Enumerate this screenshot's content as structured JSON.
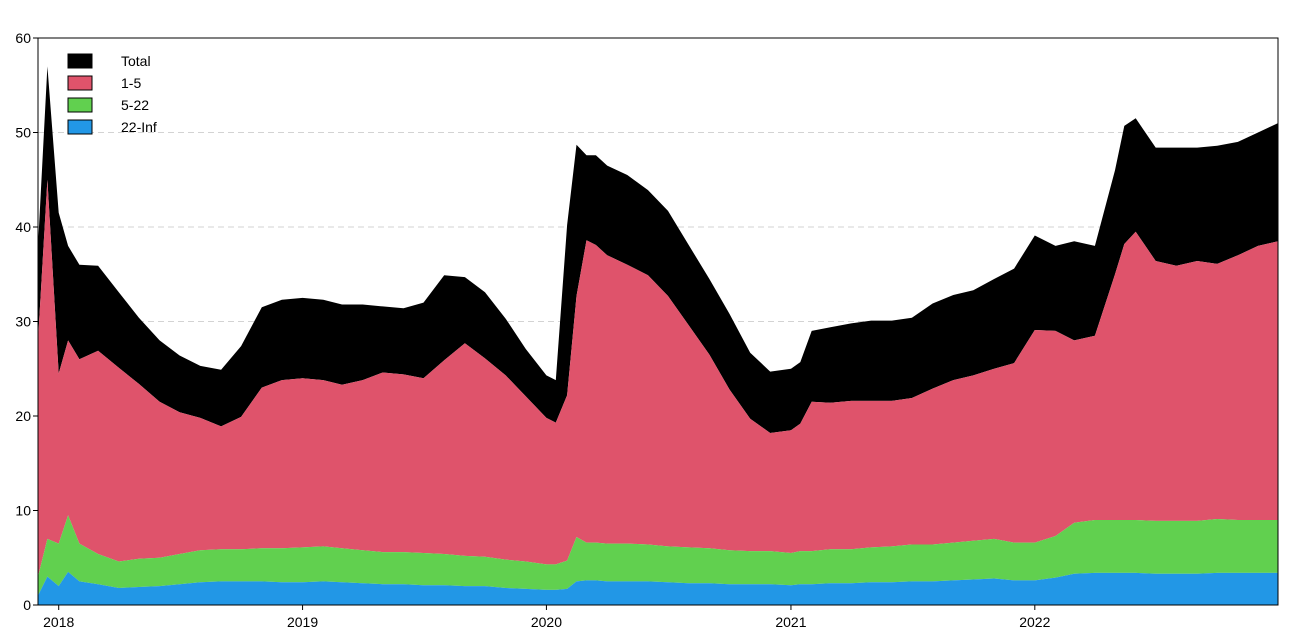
{
  "chart_data": {
    "type": "area",
    "stacked": true,
    "title": "",
    "xlabel": "",
    "ylabel": "",
    "xlim": [
      "2017-12-01",
      "2022-12-31"
    ],
    "ylim": [
      0,
      60
    ],
    "x_ticks": [
      "2018",
      "2019",
      "2020",
      "2021",
      "2022"
    ],
    "y_ticks": [
      0,
      10,
      20,
      30,
      40,
      50,
      60
    ],
    "grid": "dashed horizontal",
    "legend_position": "top-left",
    "x": [
      "2017-12-01",
      "2017-12-15",
      "2018-01-01",
      "2018-01-15",
      "2018-02-01",
      "2018-03-01",
      "2018-04-01",
      "2018-05-01",
      "2018-06-01",
      "2018-07-01",
      "2018-08-01",
      "2018-09-01",
      "2018-10-01",
      "2018-11-01",
      "2018-12-01",
      "2019-01-01",
      "2019-02-01",
      "2019-03-01",
      "2019-04-01",
      "2019-05-01",
      "2019-06-01",
      "2019-07-01",
      "2019-08-01",
      "2019-09-01",
      "2019-10-01",
      "2019-11-01",
      "2019-12-01",
      "2020-01-01",
      "2020-01-15",
      "2020-02-01",
      "2020-02-15",
      "2020-03-01",
      "2020-03-15",
      "2020-04-01",
      "2020-05-01",
      "2020-06-01",
      "2020-07-01",
      "2020-08-01",
      "2020-09-01",
      "2020-10-01",
      "2020-11-01",
      "2020-12-01",
      "2021-01-01",
      "2021-01-15",
      "2021-02-01",
      "2021-03-01",
      "2021-04-01",
      "2021-05-01",
      "2021-06-01",
      "2021-07-01",
      "2021-08-01",
      "2021-09-01",
      "2021-10-01",
      "2021-11-01",
      "2021-12-01",
      "2022-01-01",
      "2022-02-01",
      "2022-03-01",
      "2022-04-01",
      "2022-05-01",
      "2022-05-15",
      "2022-06-01",
      "2022-07-01",
      "2022-08-01",
      "2022-09-01",
      "2022-10-01",
      "2022-11-01",
      "2022-12-01",
      "2022-12-31"
    ],
    "series": [
      {
        "name": "22-Inf",
        "color": "#2297e6",
        "values": [
          1.0,
          3.0,
          2.0,
          3.5,
          2.5,
          2.2,
          1.8,
          1.9,
          2.0,
          2.2,
          2.4,
          2.5,
          2.5,
          2.5,
          2.4,
          2.4,
          2.5,
          2.4,
          2.3,
          2.2,
          2.2,
          2.1,
          2.1,
          2.0,
          2.0,
          1.8,
          1.7,
          1.6,
          1.6,
          1.7,
          2.5,
          2.6,
          2.6,
          2.5,
          2.5,
          2.5,
          2.4,
          2.3,
          2.3,
          2.2,
          2.2,
          2.2,
          2.1,
          2.2,
          2.2,
          2.3,
          2.3,
          2.4,
          2.4,
          2.5,
          2.5,
          2.6,
          2.7,
          2.8,
          2.6,
          2.6,
          2.9,
          3.3,
          3.4,
          3.4,
          3.4,
          3.4,
          3.3,
          3.3,
          3.3,
          3.4,
          3.4,
          3.4,
          3.4
        ]
      },
      {
        "name": "5-22",
        "color": "#61d04f",
        "values": [
          2.0,
          4.0,
          4.5,
          6.0,
          4.0,
          3.2,
          2.8,
          3.0,
          3.0,
          3.2,
          3.4,
          3.4,
          3.4,
          3.5,
          3.6,
          3.7,
          3.7,
          3.6,
          3.5,
          3.4,
          3.4,
          3.4,
          3.3,
          3.2,
          3.1,
          3.0,
          2.9,
          2.7,
          2.7,
          3.0,
          4.7,
          4.0,
          4.0,
          4.0,
          4.0,
          3.9,
          3.8,
          3.8,
          3.7,
          3.6,
          3.5,
          3.5,
          3.4,
          3.5,
          3.5,
          3.6,
          3.6,
          3.7,
          3.8,
          3.9,
          3.9,
          4.0,
          4.1,
          4.2,
          4.0,
          4.0,
          4.4,
          5.4,
          5.6,
          5.6,
          5.6,
          5.6,
          5.6,
          5.6,
          5.6,
          5.7,
          5.6,
          5.6,
          5.6
        ]
      },
      {
        "name": "1-5",
        "color": "#df536b",
        "values": [
          25.0,
          38.0,
          18.0,
          18.5,
          19.5,
          21.5,
          20.5,
          18.5,
          16.5,
          15.0,
          14.0,
          13.0,
          14.0,
          17.0,
          17.8,
          17.9,
          17.6,
          17.3,
          18.0,
          19.0,
          18.8,
          18.5,
          20.5,
          22.5,
          21.0,
          19.5,
          17.5,
          15.5,
          15.0,
          17.5,
          25.5,
          32.0,
          31.5,
          30.5,
          29.5,
          28.5,
          26.5,
          23.5,
          20.5,
          17.0,
          14.0,
          12.5,
          13.0,
          13.5,
          15.8,
          15.5,
          15.7,
          15.5,
          15.4,
          15.5,
          16.5,
          17.2,
          17.5,
          18.0,
          19.0,
          22.5,
          21.7,
          19.3,
          19.5,
          26.0,
          29.2,
          30.5,
          27.5,
          27.0,
          27.5,
          27.0,
          28.0,
          29.0,
          29.5
        ]
      },
      {
        "name": "Total",
        "color": "#000000",
        "values": [
          10.0,
          12.0,
          17.0,
          10.0,
          10.0,
          9.0,
          8.0,
          7.0,
          6.5,
          6.0,
          5.5,
          6.0,
          7.5,
          8.5,
          8.5,
          8.5,
          8.5,
          8.5,
          8.0,
          7.0,
          7.0,
          8.0,
          9.0,
          7.0,
          7.0,
          6.0,
          5.0,
          4.5,
          4.5,
          18.0,
          16.0,
          9.0,
          9.5,
          9.5,
          9.5,
          9.0,
          9.0,
          8.5,
          8.0,
          8.0,
          7.0,
          6.5,
          6.5,
          6.5,
          7.5,
          8.0,
          8.2,
          8.5,
          8.5,
          8.5,
          9.0,
          9.0,
          9.0,
          9.5,
          10.0,
          10.0,
          9.0,
          10.5,
          9.5,
          11.0,
          12.5,
          12.0,
          12.0,
          12.5,
          12.0,
          12.5,
          12.0,
          12.0,
          12.5
        ]
      }
    ]
  }
}
